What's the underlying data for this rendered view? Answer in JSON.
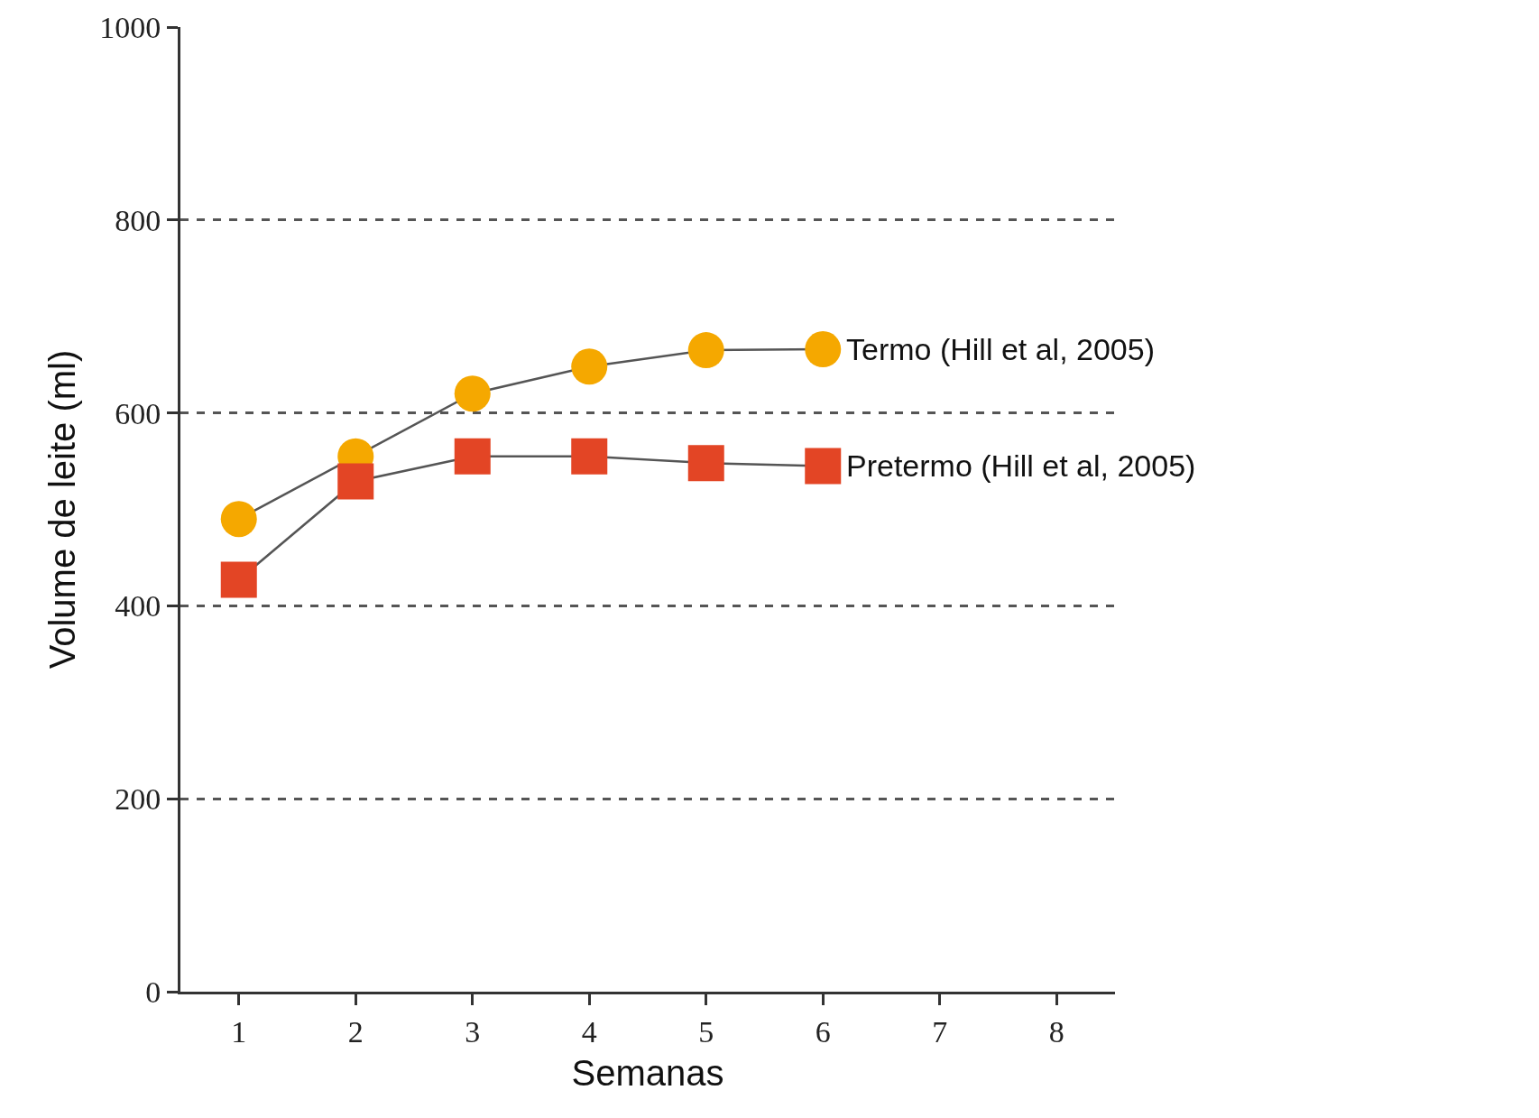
{
  "chart_data": {
    "type": "line",
    "xlabel": "Semanas",
    "ylabel": "Volume de leite (ml)",
    "x": [
      1,
      2,
      3,
      4,
      5,
      6
    ],
    "series": [
      {
        "name": "Termo (Hill et al, 2005)",
        "color": "#f5a800",
        "marker": "circle",
        "values": [
          490,
          555,
          620,
          648,
          665,
          666
        ]
      },
      {
        "name": "Pretermo (Hill et al, 2005)",
        "color": "#e34525",
        "marker": "square",
        "values": [
          427,
          529,
          555,
          555,
          548,
          545
        ]
      }
    ],
    "xlim": [
      0.5,
      8.5
    ],
    "xticks": [
      1,
      2,
      3,
      4,
      5,
      6,
      7,
      8
    ],
    "ylim": [
      0,
      1000
    ],
    "yticks": [
      0,
      200,
      400,
      600,
      800,
      1000
    ],
    "grid": "y",
    "legend": false
  }
}
